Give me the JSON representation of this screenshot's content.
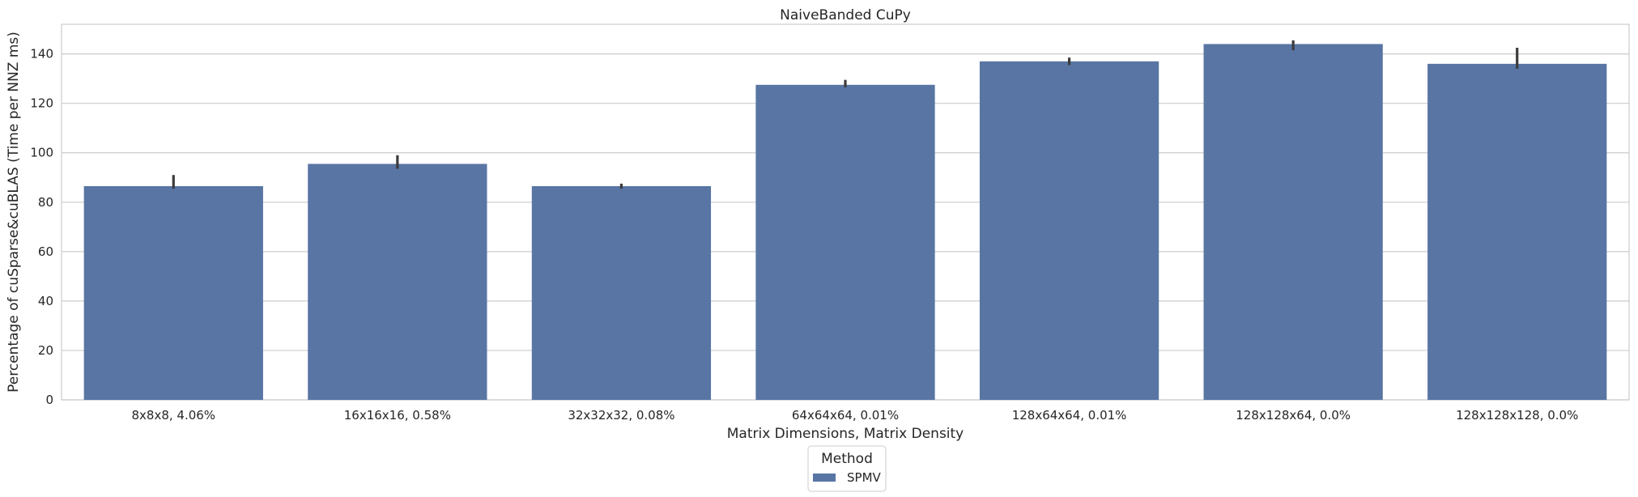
{
  "chart_data": {
    "type": "bar",
    "title": "NaiveBanded CuPy",
    "xlabel": "Matrix Dimensions, Matrix Density",
    "ylabel": "Percentage of cuSparse&cuBLAS (Time per NNZ ms)",
    "categories": [
      "8x8x8, 4.06%",
      "16x16x16, 0.58%",
      "32x32x32, 0.08%",
      "64x64x64, 0.01%",
      "128x64x64, 0.01%",
      "128x128x64, 0.0%",
      "128x128x128, 0.0%"
    ],
    "series": [
      {
        "name": "SPMV",
        "color": "#5875a4",
        "values": [
          86.5,
          95.5,
          86.5,
          127.5,
          137,
          144,
          136
        ],
        "error_low": [
          85.5,
          93.5,
          85.5,
          126.5,
          135.5,
          141.5,
          134
        ],
        "error_high": [
          91,
          99,
          87.5,
          129.5,
          138.5,
          145.5,
          142.5
        ]
      }
    ],
    "yticks": [
      0,
      20,
      40,
      60,
      80,
      100,
      120,
      140
    ],
    "ylim": [
      0,
      152
    ],
    "grid": true,
    "legend": {
      "title": "Method",
      "placement": "below-center"
    }
  }
}
